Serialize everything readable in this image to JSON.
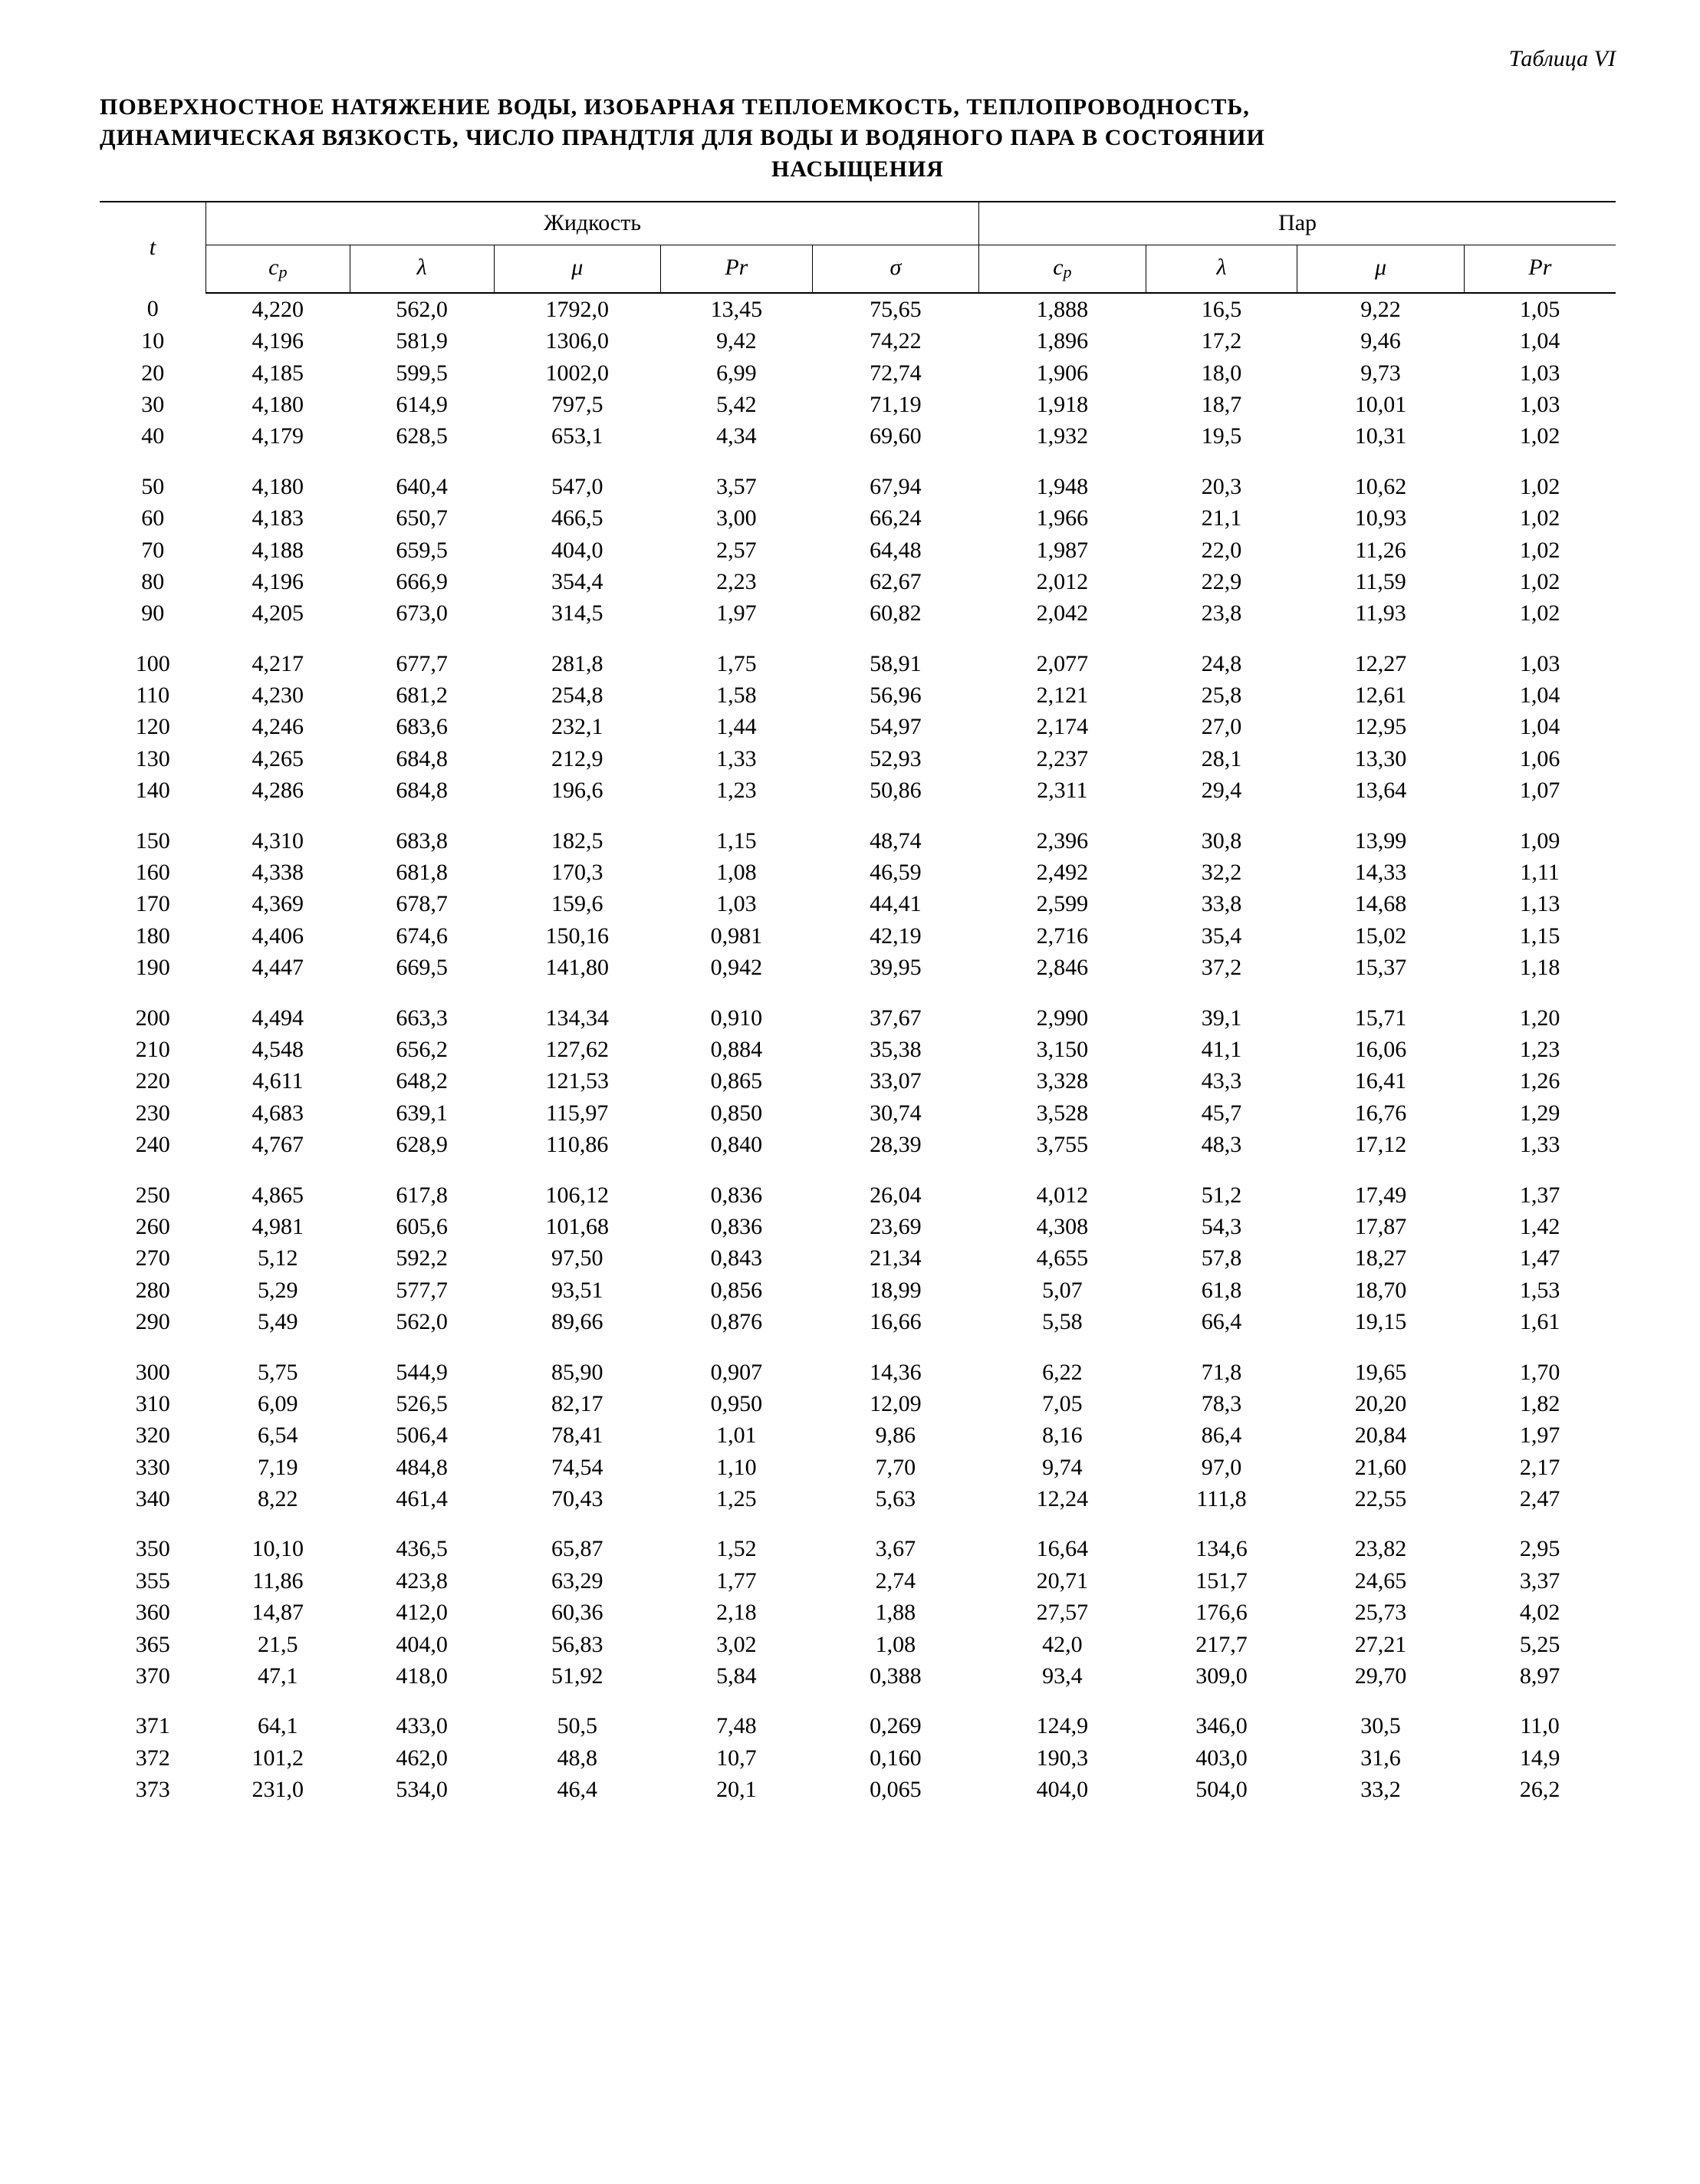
{
  "caption_label": "Таблица VI",
  "title_lines": [
    "ПОВЕРХНОСТНОЕ НАТЯЖЕНИЕ ВОДЫ, ИЗОБАРНАЯ ТЕПЛОЕМКОСТЬ, ТЕПЛОПРОВОДНОСТЬ,",
    "ДИНАМИЧЕСКАЯ ВЯЗКОСТЬ, ЧИСЛО ПРАНДТЛЯ ДЛЯ ВОДЫ И ВОДЯНОГО ПАРА В СОСТОЯНИИ",
    "НАСЫЩЕНИЯ"
  ],
  "group_headers": {
    "t": "t",
    "liquid": "Жидкость",
    "vapor": "Пар"
  },
  "sub_headers": {
    "liquid": [
      "c_p",
      "λ",
      "μ",
      "Pr",
      "σ"
    ],
    "vapor": [
      "c_p",
      "λ",
      "μ",
      "Pr"
    ]
  },
  "blocks": [
    [
      [
        "0",
        "4,220",
        "562,0",
        "1792,0",
        "13,45",
        "75,65",
        "1,888",
        "16,5",
        "9,22",
        "1,05"
      ],
      [
        "10",
        "4,196",
        "581,9",
        "1306,0",
        "9,42",
        "74,22",
        "1,896",
        "17,2",
        "9,46",
        "1,04"
      ],
      [
        "20",
        "4,185",
        "599,5",
        "1002,0",
        "6,99",
        "72,74",
        "1,906",
        "18,0",
        "9,73",
        "1,03"
      ],
      [
        "30",
        "4,180",
        "614,9",
        "797,5",
        "5,42",
        "71,19",
        "1,918",
        "18,7",
        "10,01",
        "1,03"
      ],
      [
        "40",
        "4,179",
        "628,5",
        "653,1",
        "4,34",
        "69,60",
        "1,932",
        "19,5",
        "10,31",
        "1,02"
      ]
    ],
    [
      [
        "50",
        "4,180",
        "640,4",
        "547,0",
        "3,57",
        "67,94",
        "1,948",
        "20,3",
        "10,62",
        "1,02"
      ],
      [
        "60",
        "4,183",
        "650,7",
        "466,5",
        "3,00",
        "66,24",
        "1,966",
        "21,1",
        "10,93",
        "1,02"
      ],
      [
        "70",
        "4,188",
        "659,5",
        "404,0",
        "2,57",
        "64,48",
        "1,987",
        "22,0",
        "11,26",
        "1,02"
      ],
      [
        "80",
        "4,196",
        "666,9",
        "354,4",
        "2,23",
        "62,67",
        "2,012",
        "22,9",
        "11,59",
        "1,02"
      ],
      [
        "90",
        "4,205",
        "673,0",
        "314,5",
        "1,97",
        "60,82",
        "2,042",
        "23,8",
        "11,93",
        "1,02"
      ]
    ],
    [
      [
        "100",
        "4,217",
        "677,7",
        "281,8",
        "1,75",
        "58,91",
        "2,077",
        "24,8",
        "12,27",
        "1,03"
      ],
      [
        "110",
        "4,230",
        "681,2",
        "254,8",
        "1,58",
        "56,96",
        "2,121",
        "25,8",
        "12,61",
        "1,04"
      ],
      [
        "120",
        "4,246",
        "683,6",
        "232,1",
        "1,44",
        "54,97",
        "2,174",
        "27,0",
        "12,95",
        "1,04"
      ],
      [
        "130",
        "4,265",
        "684,8",
        "212,9",
        "1,33",
        "52,93",
        "2,237",
        "28,1",
        "13,30",
        "1,06"
      ],
      [
        "140",
        "4,286",
        "684,8",
        "196,6",
        "1,23",
        "50,86",
        "2,311",
        "29,4",
        "13,64",
        "1,07"
      ]
    ],
    [
      [
        "150",
        "4,310",
        "683,8",
        "182,5",
        "1,15",
        "48,74",
        "2,396",
        "30,8",
        "13,99",
        "1,09"
      ],
      [
        "160",
        "4,338",
        "681,8",
        "170,3",
        "1,08",
        "46,59",
        "2,492",
        "32,2",
        "14,33",
        "1,11"
      ],
      [
        "170",
        "4,369",
        "678,7",
        "159,6",
        "1,03",
        "44,41",
        "2,599",
        "33,8",
        "14,68",
        "1,13"
      ],
      [
        "180",
        "4,406",
        "674,6",
        "150,16",
        "0,981",
        "42,19",
        "2,716",
        "35,4",
        "15,02",
        "1,15"
      ],
      [
        "190",
        "4,447",
        "669,5",
        "141,80",
        "0,942",
        "39,95",
        "2,846",
        "37,2",
        "15,37",
        "1,18"
      ]
    ],
    [
      [
        "200",
        "4,494",
        "663,3",
        "134,34",
        "0,910",
        "37,67",
        "2,990",
        "39,1",
        "15,71",
        "1,20"
      ],
      [
        "210",
        "4,548",
        "656,2",
        "127,62",
        "0,884",
        "35,38",
        "3,150",
        "41,1",
        "16,06",
        "1,23"
      ],
      [
        "220",
        "4,611",
        "648,2",
        "121,53",
        "0,865",
        "33,07",
        "3,328",
        "43,3",
        "16,41",
        "1,26"
      ],
      [
        "230",
        "4,683",
        "639,1",
        "115,97",
        "0,850",
        "30,74",
        "3,528",
        "45,7",
        "16,76",
        "1,29"
      ],
      [
        "240",
        "4,767",
        "628,9",
        "110,86",
        "0,840",
        "28,39",
        "3,755",
        "48,3",
        "17,12",
        "1,33"
      ]
    ],
    [
      [
        "250",
        "4,865",
        "617,8",
        "106,12",
        "0,836",
        "26,04",
        "4,012",
        "51,2",
        "17,49",
        "1,37"
      ],
      [
        "260",
        "4,981",
        "605,6",
        "101,68",
        "0,836",
        "23,69",
        "4,308",
        "54,3",
        "17,87",
        "1,42"
      ],
      [
        "270",
        "5,12",
        "592,2",
        "97,50",
        "0,843",
        "21,34",
        "4,655",
        "57,8",
        "18,27",
        "1,47"
      ],
      [
        "280",
        "5,29",
        "577,7",
        "93,51",
        "0,856",
        "18,99",
        "5,07",
        "61,8",
        "18,70",
        "1,53"
      ],
      [
        "290",
        "5,49",
        "562,0",
        "89,66",
        "0,876",
        "16,66",
        "5,58",
        "66,4",
        "19,15",
        "1,61"
      ]
    ],
    [
      [
        "300",
        "5,75",
        "544,9",
        "85,90",
        "0,907",
        "14,36",
        "6,22",
        "71,8",
        "19,65",
        "1,70"
      ],
      [
        "310",
        "6,09",
        "526,5",
        "82,17",
        "0,950",
        "12,09",
        "7,05",
        "78,3",
        "20,20",
        "1,82"
      ],
      [
        "320",
        "6,54",
        "506,4",
        "78,41",
        "1,01",
        "9,86",
        "8,16",
        "86,4",
        "20,84",
        "1,97"
      ],
      [
        "330",
        "7,19",
        "484,8",
        "74,54",
        "1,10",
        "7,70",
        "9,74",
        "97,0",
        "21,60",
        "2,17"
      ],
      [
        "340",
        "8,22",
        "461,4",
        "70,43",
        "1,25",
        "5,63",
        "12,24",
        "111,8",
        "22,55",
        "2,47"
      ]
    ],
    [
      [
        "350",
        "10,10",
        "436,5",
        "65,87",
        "1,52",
        "3,67",
        "16,64",
        "134,6",
        "23,82",
        "2,95"
      ],
      [
        "355",
        "11,86",
        "423,8",
        "63,29",
        "1,77",
        "2,74",
        "20,71",
        "151,7",
        "24,65",
        "3,37"
      ],
      [
        "360",
        "14,87",
        "412,0",
        "60,36",
        "2,18",
        "1,88",
        "27,57",
        "176,6",
        "25,73",
        "4,02"
      ],
      [
        "365",
        "21,5",
        "404,0",
        "56,83",
        "3,02",
        "1,08",
        "42,0",
        "217,7",
        "27,21",
        "5,25"
      ],
      [
        "370",
        "47,1",
        "418,0",
        "51,92",
        "5,84",
        "0,388",
        "93,4",
        "309,0",
        "29,70",
        "8,97"
      ]
    ],
    [
      [
        "371",
        "64,1",
        "433,0",
        "50,5",
        "7,48",
        "0,269",
        "124,9",
        "346,0",
        "30,5",
        "11,0"
      ],
      [
        "372",
        "101,2",
        "462,0",
        "48,8",
        "10,7",
        "0,160",
        "190,3",
        "403,0",
        "31,6",
        "14,9"
      ],
      [
        "373",
        "231,0",
        "534,0",
        "46,4",
        "20,1",
        "0,065",
        "404,0",
        "504,0",
        "33,2",
        "26,2"
      ]
    ]
  ]
}
